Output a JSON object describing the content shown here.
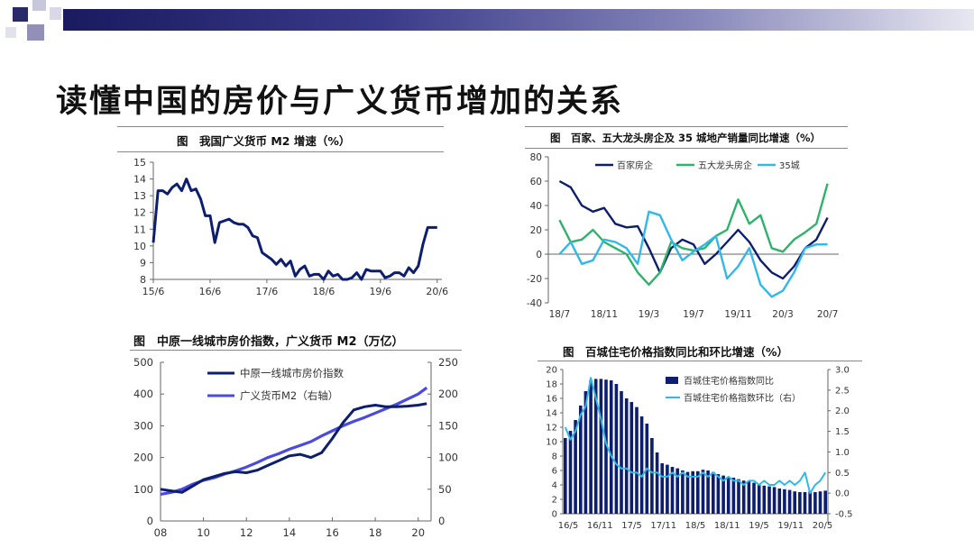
{
  "slide": {
    "title": "读懂中国的房价与广义货币增加的关系"
  },
  "colors": {
    "navy": "#0d1e6e",
    "blue": "#4a4ae0",
    "green": "#2db36b",
    "cyan": "#32b8e8"
  },
  "chart_data": [
    {
      "type": "line",
      "title": "图　我国广义货币 M2 增速（%）",
      "x_tick_labels": [
        "15/6",
        "16/6",
        "17/6",
        "18/6",
        "19/6",
        "20/6"
      ],
      "ylim": [
        8,
        15
      ],
      "y_ticks": [
        8,
        9,
        10,
        11,
        12,
        13,
        14,
        15
      ],
      "series": [
        {
          "values": [
            [
              "2015-06",
              10.2
            ],
            [
              "2015-07",
              13.3
            ],
            [
              "2015-08",
              13.3
            ],
            [
              "2015-09",
              13.1
            ],
            [
              "2015-10",
              13.5
            ],
            [
              "2015-11",
              13.7
            ],
            [
              "2015-12",
              13.3
            ],
            [
              "2016-01",
              14.0
            ],
            [
              "2016-02",
              13.3
            ],
            [
              "2016-03",
              13.4
            ],
            [
              "2016-04",
              12.8
            ],
            [
              "2016-05",
              11.8
            ],
            [
              "2016-06",
              11.8
            ],
            [
              "2016-07",
              10.2
            ],
            [
              "2016-08",
              11.4
            ],
            [
              "2016-09",
              11.5
            ],
            [
              "2016-10",
              11.6
            ],
            [
              "2016-11",
              11.4
            ],
            [
              "2016-12",
              11.3
            ],
            [
              "2017-01",
              11.3
            ],
            [
              "2017-02",
              11.1
            ],
            [
              "2017-03",
              10.6
            ],
            [
              "2017-04",
              10.5
            ],
            [
              "2017-05",
              9.6
            ],
            [
              "2017-06",
              9.4
            ],
            [
              "2017-07",
              9.2
            ],
            [
              "2017-08",
              8.9
            ],
            [
              "2017-09",
              9.2
            ],
            [
              "2017-10",
              8.8
            ],
            [
              "2017-11",
              9.1
            ],
            [
              "2017-12",
              8.2
            ],
            [
              "2018-01",
              8.6
            ],
            [
              "2018-02",
              8.8
            ],
            [
              "2018-03",
              8.2
            ],
            [
              "2018-04",
              8.3
            ],
            [
              "2018-05",
              8.3
            ],
            [
              "2018-06",
              8.0
            ],
            [
              "2018-07",
              8.5
            ],
            [
              "2018-08",
              8.2
            ],
            [
              "2018-09",
              8.3
            ],
            [
              "2018-10",
              8.0
            ],
            [
              "2018-11",
              8.0
            ],
            [
              "2018-12",
              8.1
            ],
            [
              "2019-01",
              8.4
            ],
            [
              "2019-02",
              8.0
            ],
            [
              "2019-03",
              8.6
            ],
            [
              "2019-04",
              8.5
            ],
            [
              "2019-05",
              8.5
            ],
            [
              "2019-06",
              8.5
            ],
            [
              "2019-07",
              8.1
            ],
            [
              "2019-08",
              8.2
            ],
            [
              "2019-09",
              8.4
            ],
            [
              "2019-10",
              8.4
            ],
            [
              "2019-11",
              8.2
            ],
            [
              "2019-12",
              8.7
            ],
            [
              "2020-01",
              8.4
            ],
            [
              "2020-02",
              8.8
            ],
            [
              "2020-03",
              10.1
            ],
            [
              "2020-04",
              11.1
            ],
            [
              "2020-05",
              11.1
            ],
            [
              "2020-06",
              11.1
            ]
          ]
        }
      ],
      "grid": false
    },
    {
      "type": "line",
      "title": "图　百家、五大龙头房企及 35 城地产销量同比增速（%）",
      "x_tick_labels": [
        "18/7",
        "18/11",
        "19/3",
        "19/7",
        "19/11",
        "20/3",
        "20/7"
      ],
      "ylim": [
        -40,
        80
      ],
      "y_ticks": [
        -40,
        -20,
        0,
        20,
        40,
        60,
        80
      ],
      "legend_position": "top",
      "series": [
        {
          "name": "百家房企",
          "values": [
            [
              "2018-07",
              60
            ],
            [
              "2018-08",
              55
            ],
            [
              "2018-09",
              40
            ],
            [
              "2018-10",
              35
            ],
            [
              "2018-11",
              38
            ],
            [
              "2018-12",
              25
            ],
            [
              "2019-01",
              22
            ],
            [
              "2019-02",
              23
            ],
            [
              "2019-03",
              5
            ],
            [
              "2019-04",
              -15
            ],
            [
              "2019-05",
              5
            ],
            [
              "2019-06",
              12
            ],
            [
              "2019-07",
              8
            ],
            [
              "2019-08",
              -8
            ],
            [
              "2019-09",
              0
            ],
            [
              "2019-10",
              10
            ],
            [
              "2019-11",
              20
            ],
            [
              "2019-12",
              10
            ],
            [
              "2020-01",
              -5
            ],
            [
              "2020-02",
              -15
            ],
            [
              "2020-03",
              -20
            ],
            [
              "2020-04",
              -10
            ],
            [
              "2020-05",
              5
            ],
            [
              "2020-06",
              12
            ],
            [
              "2020-07",
              30
            ]
          ]
        },
        {
          "name": "五大龙头房企",
          "values": [
            [
              "2018-07",
              28
            ],
            [
              "2018-08",
              10
            ],
            [
              "2018-09",
              12
            ],
            [
              "2018-10",
              20
            ],
            [
              "2018-11",
              10
            ],
            [
              "2018-12",
              5
            ],
            [
              "2019-01",
              0
            ],
            [
              "2019-02",
              -15
            ],
            [
              "2019-03",
              -25
            ],
            [
              "2019-04",
              -15
            ],
            [
              "2019-05",
              10
            ],
            [
              "2019-06",
              5
            ],
            [
              "2019-07",
              3
            ],
            [
              "2019-08",
              5
            ],
            [
              "2019-09",
              15
            ],
            [
              "2019-10",
              20
            ],
            [
              "2019-11",
              45
            ],
            [
              "2019-12",
              25
            ],
            [
              "2020-01",
              32
            ],
            [
              "2020-02",
              5
            ],
            [
              "2020-03",
              2
            ],
            [
              "2020-04",
              12
            ],
            [
              "2020-05",
              18
            ],
            [
              "2020-06",
              25
            ],
            [
              "2020-07",
              58
            ]
          ]
        },
        {
          "name": "35城",
          "values": [
            [
              "2018-07",
              0
            ],
            [
              "2018-08",
              10
            ],
            [
              "2018-09",
              -8
            ],
            [
              "2018-10",
              -5
            ],
            [
              "2018-11",
              12
            ],
            [
              "2018-12",
              10
            ],
            [
              "2019-01",
              5
            ],
            [
              "2019-02",
              -8
            ],
            [
              "2019-03",
              35
            ],
            [
              "2019-04",
              32
            ],
            [
              "2019-05",
              12
            ],
            [
              "2019-06",
              -5
            ],
            [
              "2019-07",
              2
            ],
            [
              "2019-08",
              8
            ],
            [
              "2019-09",
              15
            ],
            [
              "2019-10",
              -20
            ],
            [
              "2019-11",
              -10
            ],
            [
              "2019-12",
              5
            ],
            [
              "2020-01",
              -25
            ],
            [
              "2020-02",
              -35
            ],
            [
              "2020-03",
              -30
            ],
            [
              "2020-04",
              -15
            ],
            [
              "2020-05",
              5
            ],
            [
              "2020-06",
              8
            ],
            [
              "2020-07",
              8
            ]
          ]
        }
      ]
    },
    {
      "type": "line",
      "title": "图　中原一线城市房价指数，广义货币 M2（万亿）",
      "x_tick_labels": [
        "08",
        "10",
        "12",
        "14",
        "16",
        "18",
        "20"
      ],
      "xlim": [
        2008,
        2020.6
      ],
      "ylim_left": [
        0,
        500
      ],
      "y_ticks_left": [
        0,
        100,
        200,
        300,
        400,
        500
      ],
      "ylim_right": [
        0,
        250
      ],
      "y_ticks_right": [
        0,
        50,
        100,
        150,
        200,
        250
      ],
      "legend_position": "top-left",
      "series": [
        {
          "name": "中原一线城市房价指数",
          "axis": "left",
          "values": [
            [
              2008.0,
              100
            ],
            [
              2008.5,
              95
            ],
            [
              2009.0,
              90
            ],
            [
              2009.5,
              110
            ],
            [
              2010.0,
              130
            ],
            [
              2010.5,
              140
            ],
            [
              2011.0,
              150
            ],
            [
              2011.5,
              155
            ],
            [
              2012.0,
              152
            ],
            [
              2012.5,
              160
            ],
            [
              2013.0,
              175
            ],
            [
              2013.5,
              190
            ],
            [
              2014.0,
              205
            ],
            [
              2014.5,
              210
            ],
            [
              2015.0,
              200
            ],
            [
              2015.5,
              215
            ],
            [
              2016.0,
              260
            ],
            [
              2016.5,
              310
            ],
            [
              2017.0,
              350
            ],
            [
              2017.5,
              360
            ],
            [
              2018.0,
              365
            ],
            [
              2018.5,
              360
            ],
            [
              2019.0,
              360
            ],
            [
              2019.5,
              362
            ],
            [
              2020.0,
              365
            ],
            [
              2020.4,
              370
            ]
          ]
        },
        {
          "name": "广义货币M2（右轴）",
          "axis": "right",
          "values": [
            [
              2008.0,
              42
            ],
            [
              2008.5,
              45
            ],
            [
              2009.0,
              50
            ],
            [
              2009.5,
              58
            ],
            [
              2010.0,
              64
            ],
            [
              2010.5,
              68
            ],
            [
              2011.0,
              74
            ],
            [
              2011.5,
              79
            ],
            [
              2012.0,
              85
            ],
            [
              2012.5,
              92
            ],
            [
              2013.0,
              100
            ],
            [
              2013.5,
              106
            ],
            [
              2014.0,
              113
            ],
            [
              2014.5,
              119
            ],
            [
              2015.0,
              125
            ],
            [
              2015.5,
              134
            ],
            [
              2016.0,
              142
            ],
            [
              2016.5,
              150
            ],
            [
              2017.0,
              157
            ],
            [
              2017.5,
              163
            ],
            [
              2018.0,
              170
            ],
            [
              2018.5,
              177
            ],
            [
              2019.0,
              184
            ],
            [
              2019.5,
              192
            ],
            [
              2020.0,
              200
            ],
            [
              2020.4,
              210
            ]
          ]
        }
      ]
    },
    {
      "type": "bar",
      "title": "图　百城住宅价格指数同比和环比增速（%）",
      "x_tick_labels": [
        "16/5",
        "16/11",
        "17/5",
        "17/11",
        "18/5",
        "18/11",
        "19/5",
        "19/11",
        "20/5"
      ],
      "ylim_left": [
        0,
        20
      ],
      "y_ticks_left": [
        0,
        2,
        4,
        6,
        8,
        10,
        12,
        14,
        16,
        18,
        20
      ],
      "ylim_right": [
        -0.5,
        3.0
      ],
      "y_ticks_right": [
        "-0.5",
        "0.0",
        "0.5",
        "1.0",
        "1.5",
        "2.0",
        "2.5",
        "3.0"
      ],
      "legend_position": "top-right",
      "series": [
        {
          "name": "百城住宅价格指数同比",
          "type": "bar",
          "axis": "left",
          "values": [
            10.5,
            11.5,
            13,
            15,
            17,
            18.5,
            18.7,
            18.7,
            18.6,
            18.5,
            18,
            17,
            16,
            15.5,
            14.8,
            13.5,
            12.5,
            10.5,
            8.5,
            7,
            6.8,
            6.5,
            6.3,
            6,
            5.8,
            5.9,
            5.9,
            6.1,
            6,
            5.8,
            5.5,
            5.3,
            5.1,
            5,
            4.8,
            4.6,
            4.5,
            4.3,
            4,
            3.9,
            3.8,
            3.7,
            3.5,
            3.4,
            3.3,
            3.1,
            3,
            3,
            3.1,
            3,
            3.1,
            3.2
          ]
        },
        {
          "name": "百城住宅价格指数环比（右）",
          "type": "line",
          "axis": "right",
          "values": [
            1.6,
            1.3,
            1.5,
            1.9,
            2.1,
            2.8,
            2.3,
            1.8,
            1.2,
            0.9,
            0.7,
            0.6,
            0.6,
            0.5,
            0.5,
            0.4,
            0.6,
            0.5,
            0.5,
            0.4,
            0.4,
            0.5,
            0.4,
            0.5,
            0.4,
            0.4,
            0.4,
            0.5,
            0.4,
            0.5,
            0.4,
            0.3,
            0.4,
            0.3,
            0.3,
            0.2,
            0.3,
            0.3,
            0.2,
            0.3,
            0.2,
            0.2,
            0.3,
            0.2,
            0.3,
            0.2,
            0.3,
            0.5,
            0.0,
            0.2,
            0.3,
            0.5
          ]
        }
      ]
    }
  ]
}
